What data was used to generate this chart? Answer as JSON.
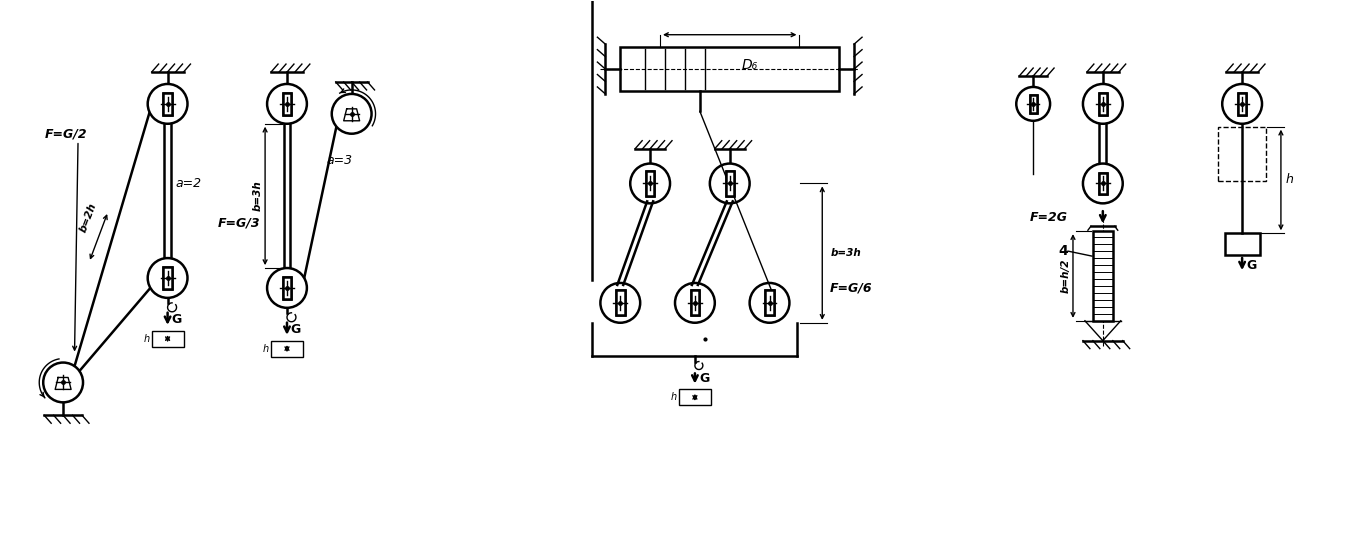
{
  "bg_color": "#ffffff",
  "line_color": "#000000",
  "fig_width": 13.53,
  "fig_height": 5.48,
  "dpi": 100,
  "labels": {
    "F1": "F=G/2",
    "a1": "a=2",
    "b1": "b=2h",
    "F2": "F=G/3",
    "a2": "a=3",
    "b2": "b=3h",
    "D6": "D₆",
    "F3": "F=G/6",
    "b3": "b=3h",
    "F4": "F=2G",
    "b4": "b=h/2",
    "num4": "4",
    "h4": "h",
    "G": "G"
  }
}
